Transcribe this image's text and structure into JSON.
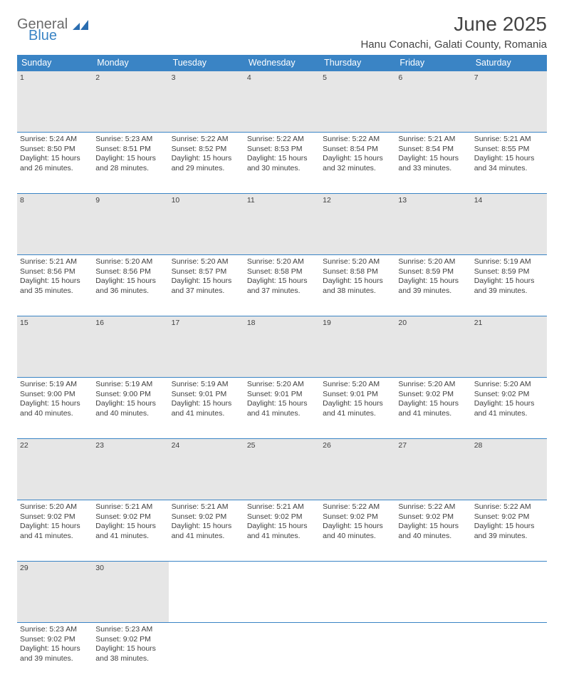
{
  "logo": {
    "general": "General",
    "blue": "Blue"
  },
  "title": "June 2025",
  "location": "Hanu Conachi, Galati County, Romania",
  "header_bg": "#3a84c5",
  "daynum_bg": "#e6e6e6",
  "weekdays": [
    "Sunday",
    "Monday",
    "Tuesday",
    "Wednesday",
    "Thursday",
    "Friday",
    "Saturday"
  ],
  "weeks": [
    [
      {
        "n": "1",
        "sr": "5:24 AM",
        "ss": "8:50 PM",
        "dl": "15 hours and 26 minutes."
      },
      {
        "n": "2",
        "sr": "5:23 AM",
        "ss": "8:51 PM",
        "dl": "15 hours and 28 minutes."
      },
      {
        "n": "3",
        "sr": "5:22 AM",
        "ss": "8:52 PM",
        "dl": "15 hours and 29 minutes."
      },
      {
        "n": "4",
        "sr": "5:22 AM",
        "ss": "8:53 PM",
        "dl": "15 hours and 30 minutes."
      },
      {
        "n": "5",
        "sr": "5:22 AM",
        "ss": "8:54 PM",
        "dl": "15 hours and 32 minutes."
      },
      {
        "n": "6",
        "sr": "5:21 AM",
        "ss": "8:54 PM",
        "dl": "15 hours and 33 minutes."
      },
      {
        "n": "7",
        "sr": "5:21 AM",
        "ss": "8:55 PM",
        "dl": "15 hours and 34 minutes."
      }
    ],
    [
      {
        "n": "8",
        "sr": "5:21 AM",
        "ss": "8:56 PM",
        "dl": "15 hours and 35 minutes."
      },
      {
        "n": "9",
        "sr": "5:20 AM",
        "ss": "8:56 PM",
        "dl": "15 hours and 36 minutes."
      },
      {
        "n": "10",
        "sr": "5:20 AM",
        "ss": "8:57 PM",
        "dl": "15 hours and 37 minutes."
      },
      {
        "n": "11",
        "sr": "5:20 AM",
        "ss": "8:58 PM",
        "dl": "15 hours and 37 minutes."
      },
      {
        "n": "12",
        "sr": "5:20 AM",
        "ss": "8:58 PM",
        "dl": "15 hours and 38 minutes."
      },
      {
        "n": "13",
        "sr": "5:20 AM",
        "ss": "8:59 PM",
        "dl": "15 hours and 39 minutes."
      },
      {
        "n": "14",
        "sr": "5:19 AM",
        "ss": "8:59 PM",
        "dl": "15 hours and 39 minutes."
      }
    ],
    [
      {
        "n": "15",
        "sr": "5:19 AM",
        "ss": "9:00 PM",
        "dl": "15 hours and 40 minutes."
      },
      {
        "n": "16",
        "sr": "5:19 AM",
        "ss": "9:00 PM",
        "dl": "15 hours and 40 minutes."
      },
      {
        "n": "17",
        "sr": "5:19 AM",
        "ss": "9:01 PM",
        "dl": "15 hours and 41 minutes."
      },
      {
        "n": "18",
        "sr": "5:20 AM",
        "ss": "9:01 PM",
        "dl": "15 hours and 41 minutes."
      },
      {
        "n": "19",
        "sr": "5:20 AM",
        "ss": "9:01 PM",
        "dl": "15 hours and 41 minutes."
      },
      {
        "n": "20",
        "sr": "5:20 AM",
        "ss": "9:02 PM",
        "dl": "15 hours and 41 minutes."
      },
      {
        "n": "21",
        "sr": "5:20 AM",
        "ss": "9:02 PM",
        "dl": "15 hours and 41 minutes."
      }
    ],
    [
      {
        "n": "22",
        "sr": "5:20 AM",
        "ss": "9:02 PM",
        "dl": "15 hours and 41 minutes."
      },
      {
        "n": "23",
        "sr": "5:21 AM",
        "ss": "9:02 PM",
        "dl": "15 hours and 41 minutes."
      },
      {
        "n": "24",
        "sr": "5:21 AM",
        "ss": "9:02 PM",
        "dl": "15 hours and 41 minutes."
      },
      {
        "n": "25",
        "sr": "5:21 AM",
        "ss": "9:02 PM",
        "dl": "15 hours and 41 minutes."
      },
      {
        "n": "26",
        "sr": "5:22 AM",
        "ss": "9:02 PM",
        "dl": "15 hours and 40 minutes."
      },
      {
        "n": "27",
        "sr": "5:22 AM",
        "ss": "9:02 PM",
        "dl": "15 hours and 40 minutes."
      },
      {
        "n": "28",
        "sr": "5:22 AM",
        "ss": "9:02 PM",
        "dl": "15 hours and 39 minutes."
      }
    ],
    [
      {
        "n": "29",
        "sr": "5:23 AM",
        "ss": "9:02 PM",
        "dl": "15 hours and 39 minutes."
      },
      {
        "n": "30",
        "sr": "5:23 AM",
        "ss": "9:02 PM",
        "dl": "15 hours and 38 minutes."
      },
      null,
      null,
      null,
      null,
      null
    ]
  ],
  "labels": {
    "sunrise": "Sunrise: ",
    "sunset": "Sunset: ",
    "daylight": "Daylight: "
  }
}
